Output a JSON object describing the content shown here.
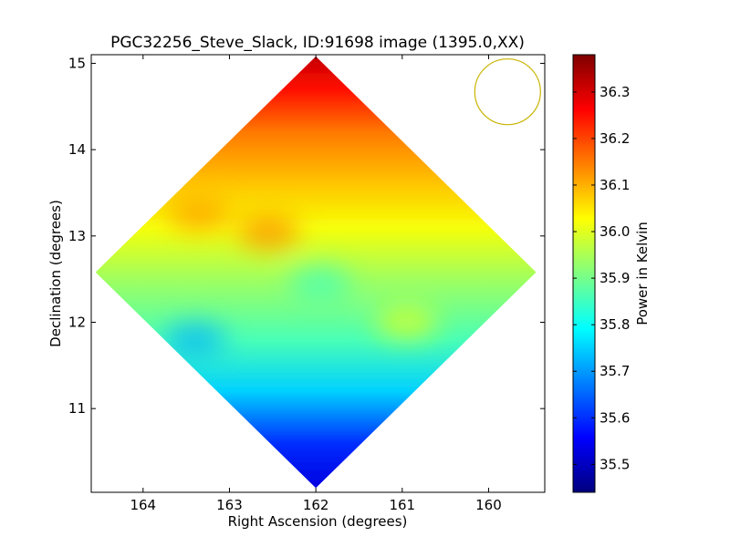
{
  "chart_data": {
    "type": "heatmap",
    "title": "PGC32256_Steve_Slack, ID:91698 image (1395.0,XX)",
    "xlabel": "Right Ascension (degrees)",
    "ylabel": "Declination (degrees)",
    "xlim": [
      164.6,
      159.35
    ],
    "ylim": [
      10.03,
      15.1
    ],
    "x_ticks": [
      164,
      163,
      162,
      161,
      160
    ],
    "y_ticks": [
      11,
      12,
      13,
      14,
      15
    ],
    "x_tick_labels": [
      "164",
      "163",
      "162",
      "161",
      "160"
    ],
    "y_tick_labels": [
      "11",
      "12",
      "13",
      "14",
      "15"
    ],
    "colormap": "jet",
    "colorbar": {
      "label": "Power in Kelvin",
      "range": [
        35.44,
        36.38
      ],
      "ticks": [
        35.5,
        35.6,
        35.7,
        35.8,
        35.9,
        36.0,
        36.1,
        36.2,
        36.3
      ],
      "tick_labels": [
        "35.5",
        "35.6",
        "35.7",
        "35.8",
        "35.9",
        "36.0",
        "36.1",
        "36.2",
        "36.3"
      ]
    },
    "coverage": {
      "shape": "diamond",
      "center_ra": 162.0,
      "center_dec": 12.58,
      "half_width_ra": 2.55,
      "half_height_dec": 2.5
    },
    "gradient": {
      "direction": "dec",
      "stops": [
        {
          "dec": 10.1,
          "value": 35.53
        },
        {
          "dec": 10.6,
          "value": 35.6
        },
        {
          "dec": 11.2,
          "value": 35.75
        },
        {
          "dec": 11.8,
          "value": 35.86
        },
        {
          "dec": 12.5,
          "value": 35.94
        },
        {
          "dec": 13.1,
          "value": 36.02
        },
        {
          "dec": 13.6,
          "value": 36.08
        },
        {
          "dec": 14.2,
          "value": 36.15
        },
        {
          "dec": 14.7,
          "value": 36.25
        },
        {
          "dec": 15.05,
          "value": 36.31
        }
      ]
    },
    "features": [
      {
        "ra": 162.55,
        "dec": 13.05,
        "value": 36.14
      },
      {
        "ra": 163.35,
        "dec": 13.25,
        "value": 36.12
      },
      {
        "ra": 160.95,
        "dec": 12.0,
        "value": 36.0
      },
      {
        "ra": 161.95,
        "dec": 12.45,
        "value": 35.85
      },
      {
        "ra": 163.4,
        "dec": 11.8,
        "value": 35.72
      }
    ],
    "beam": {
      "ra": 159.78,
      "dec": 14.67,
      "radius_deg": 0.38,
      "color": "#c8b400"
    }
  }
}
